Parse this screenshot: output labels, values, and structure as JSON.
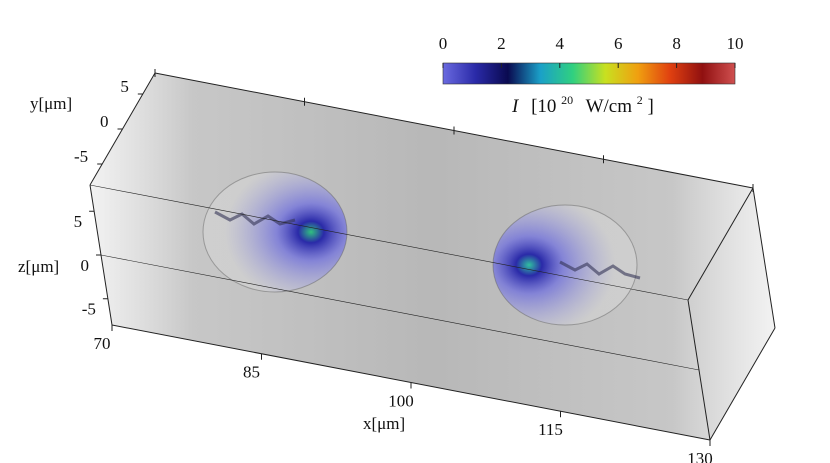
{
  "chart_data": {
    "type": "volume",
    "x_label": "x[μm]",
    "y_label": "y[μm]",
    "z_label": "z[μm]",
    "xlim": [
      70,
      130
    ],
    "xticks": [
      70,
      85,
      100,
      115,
      130
    ],
    "ylim": [
      -8,
      8
    ],
    "yticks": [
      -5,
      0,
      5
    ],
    "zlim": [
      -8,
      8
    ],
    "zticks": [
      -5,
      0,
      5
    ],
    "colorbar": {
      "label": [
        "I",
        "[10",
        "20",
        "W/cm",
        "2",
        "]"
      ],
      "clim": [
        0,
        10
      ],
      "ticks": [
        0,
        2,
        4,
        6,
        8,
        10
      ],
      "colormap": [
        "#6a6ae0",
        "#2a2aa8",
        "#0a0a50",
        "#1aa0c8",
        "#30d080",
        "#c8e020",
        "#f0a010",
        "#e04010",
        "#901010",
        "#d05050"
      ]
    }
  }
}
